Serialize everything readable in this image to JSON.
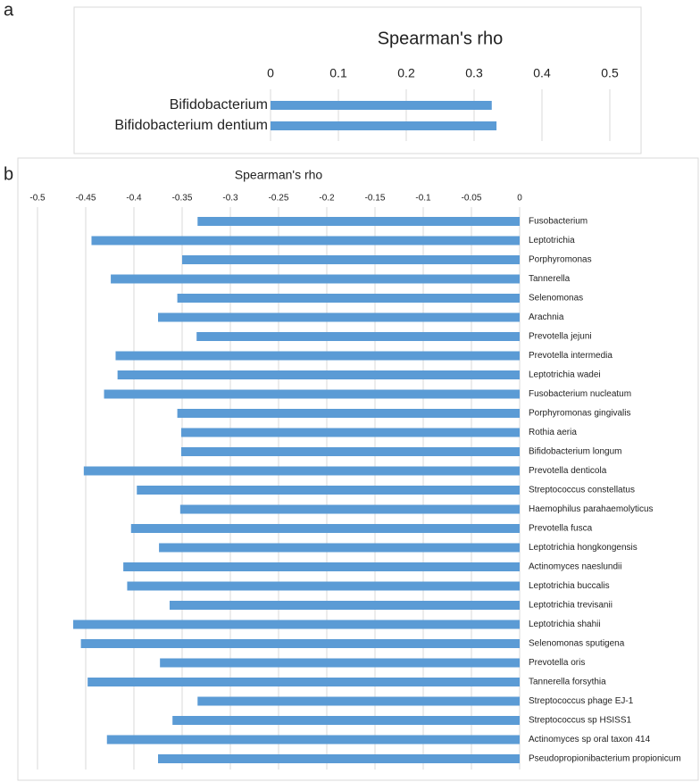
{
  "chart_data": [
    {
      "type": "bar",
      "orientation": "horizontal",
      "panel_label": "a",
      "title": "Spearman's rho",
      "categories": [
        "Bifidobacterium",
        "Bifidobacterium dentium"
      ],
      "values": [
        0.326,
        0.333
      ],
      "color": "#5b9bd5",
      "xlim": [
        0,
        0.5
      ],
      "xticks": [
        0,
        0.1,
        0.2,
        0.3,
        0.4,
        0.5
      ],
      "grid": true
    },
    {
      "type": "bar",
      "orientation": "horizontal",
      "panel_label": "b",
      "title": "Spearman's rho",
      "categories": [
        "Fusobacterium",
        "Leptotrichia",
        "Porphyromonas",
        "Tannerella",
        "Selenomonas",
        "Arachnia",
        "Prevotella jejuni",
        "Prevotella intermedia",
        "Leptotrichia wadei",
        "Fusobacterium nucleatum",
        "Porphyromonas gingivalis",
        "Rothia aeria",
        "Bifidobacterium longum",
        "Prevotella denticola",
        "Streptococcus constellatus",
        "Haemophilus parahaemolyticus",
        "Prevotella fusca",
        "Leptotrichia hongkongensis",
        "Actinomyces naeslundii",
        "Leptotrichia buccalis",
        "Leptotrichia trevisanii",
        "Leptotrichia shahii",
        "Selenomonas sputigena",
        "Prevotella oris",
        "Tannerella forsythia",
        "Streptococcus phage EJ-1",
        "Streptococcus sp HSISS1",
        "Actinomyces sp oral taxon 414",
        "Pseudopropionibacterium propionicum"
      ],
      "values": [
        -0.334,
        -0.444,
        -0.35,
        -0.424,
        -0.355,
        -0.375,
        -0.335,
        -0.419,
        -0.417,
        -0.431,
        -0.355,
        -0.351,
        -0.351,
        -0.452,
        -0.397,
        -0.352,
        -0.403,
        -0.374,
        -0.411,
        -0.407,
        -0.363,
        -0.463,
        -0.455,
        -0.373,
        -0.448,
        -0.334,
        -0.36,
        -0.428,
        -0.375
      ],
      "color": "#5b9bd5",
      "xlim": [
        -0.5,
        0
      ],
      "xticks": [
        -0.5,
        -0.45,
        -0.4,
        -0.35,
        -0.3,
        -0.25,
        -0.2,
        -0.15,
        -0.1,
        -0.05,
        0
      ],
      "grid": true
    }
  ]
}
